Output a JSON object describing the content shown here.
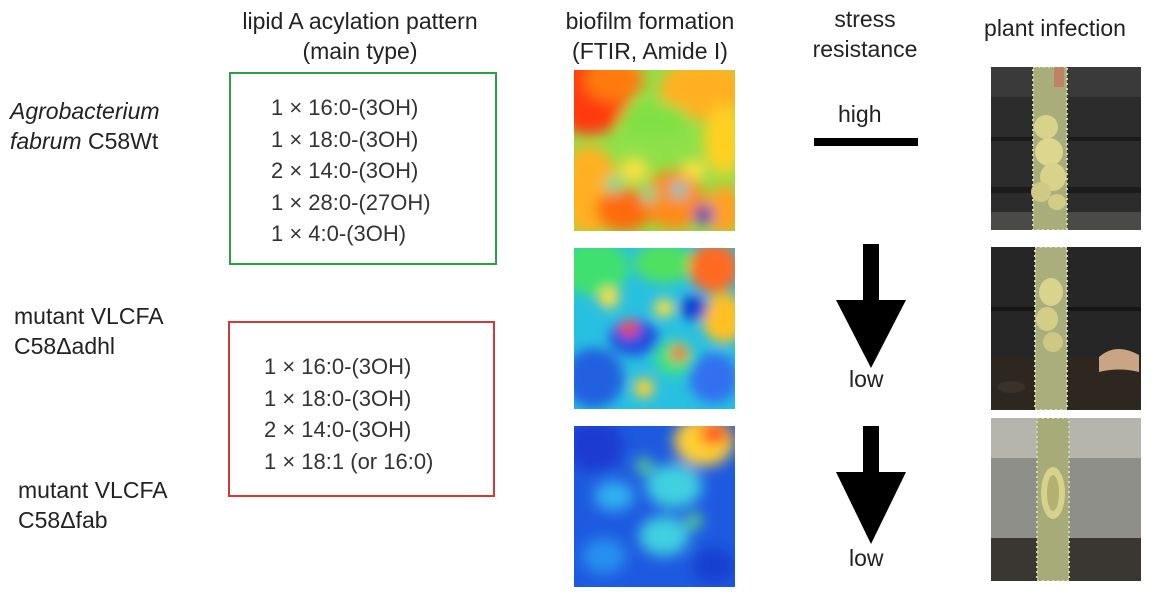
{
  "headers": {
    "lipid": [
      "lipid A acylation pattern",
      "(main type)"
    ],
    "biofilm": [
      "biofilm formation",
      "(FTIR, Amide I)"
    ],
    "stress": [
      "stress",
      "resistance"
    ],
    "plant": "plant infection"
  },
  "strains": [
    {
      "genus": "Agrobacterium",
      "species": "fabrum",
      "strain": "C58Wt"
    },
    {
      "line1": "mutant VLCFA",
      "line2": "C58Δadhl"
    },
    {
      "line1": "mutant VLCFA",
      "line2": "C58Δfab"
    }
  ],
  "lipid_patterns": {
    "wildtype": [
      "1 × 16:0-(3OH)",
      "1 × 18:0-(3OH)",
      "2 × 14:0-(3OH)",
      "1 × 28:0-(27OH)",
      "1 × 4:0-(3OH)"
    ],
    "mutants": [
      "1 × 16:0-(3OH)",
      "1 × 18:0-(3OH)",
      "2 × 14:0-(3OH)",
      "1 × 18:1 (or 16:0)"
    ]
  },
  "stress_labels": [
    "high",
    "low",
    "low"
  ],
  "colors": {
    "wildtype_box": "#2e9e45",
    "mutant_box": "#d23a3a"
  }
}
